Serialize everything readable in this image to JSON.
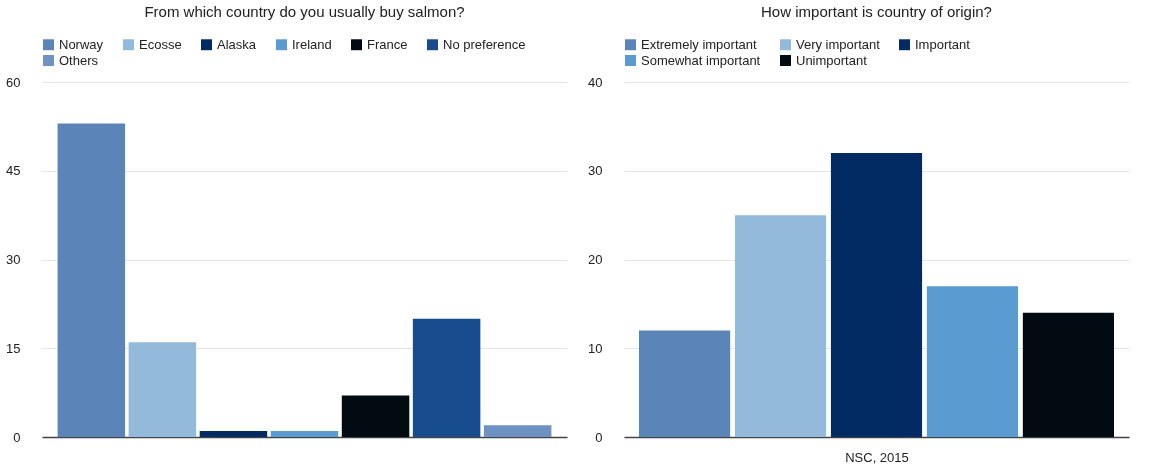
{
  "chart_data": [
    {
      "type": "bar",
      "title": "From which country do you usually buy salmon?",
      "categories": [
        null
      ],
      "legend": "top",
      "grid": "y",
      "ylim": [
        0,
        60
      ],
      "yticks": [
        0,
        15,
        30,
        45,
        60
      ],
      "series": [
        {
          "name": "Norway",
          "color": "#5b85b8",
          "values": [
            53
          ]
        },
        {
          "name": "Ecosse",
          "color": "#93b9db",
          "values": [
            16
          ]
        },
        {
          "name": "Alaska",
          "color": "#022a63",
          "values": [
            1
          ]
        },
        {
          "name": "Ireland",
          "color": "#5a9bd1",
          "values": [
            1
          ]
        },
        {
          "name": "France",
          "color": "#020a12",
          "values": [
            7
          ]
        },
        {
          "name": "No preference",
          "color": "#174c8e",
          "values": [
            20
          ]
        },
        {
          "name": "Others",
          "color": "#6f92c2",
          "values": [
            2
          ]
        }
      ]
    },
    {
      "type": "bar",
      "title": "How important is country of origin?",
      "categories": [
        null
      ],
      "legend": "top",
      "grid": "y",
      "ylim": [
        0,
        40
      ],
      "yticks": [
        0,
        10,
        20,
        30,
        40
      ],
      "annotations": [
        "NSC, 2015"
      ],
      "series": [
        {
          "name": "Extremely important",
          "color": "#5b85b8",
          "values": [
            12
          ]
        },
        {
          "name": "Very important",
          "color": "#93b9db",
          "values": [
            25
          ]
        },
        {
          "name": "Important",
          "color": "#022a63",
          "values": [
            32
          ]
        },
        {
          "name": "Somewhat important",
          "color": "#5a9bd1",
          "values": [
            17
          ]
        },
        {
          "name": "Unimportant",
          "color": "#020a12",
          "values": [
            14
          ]
        }
      ]
    }
  ]
}
